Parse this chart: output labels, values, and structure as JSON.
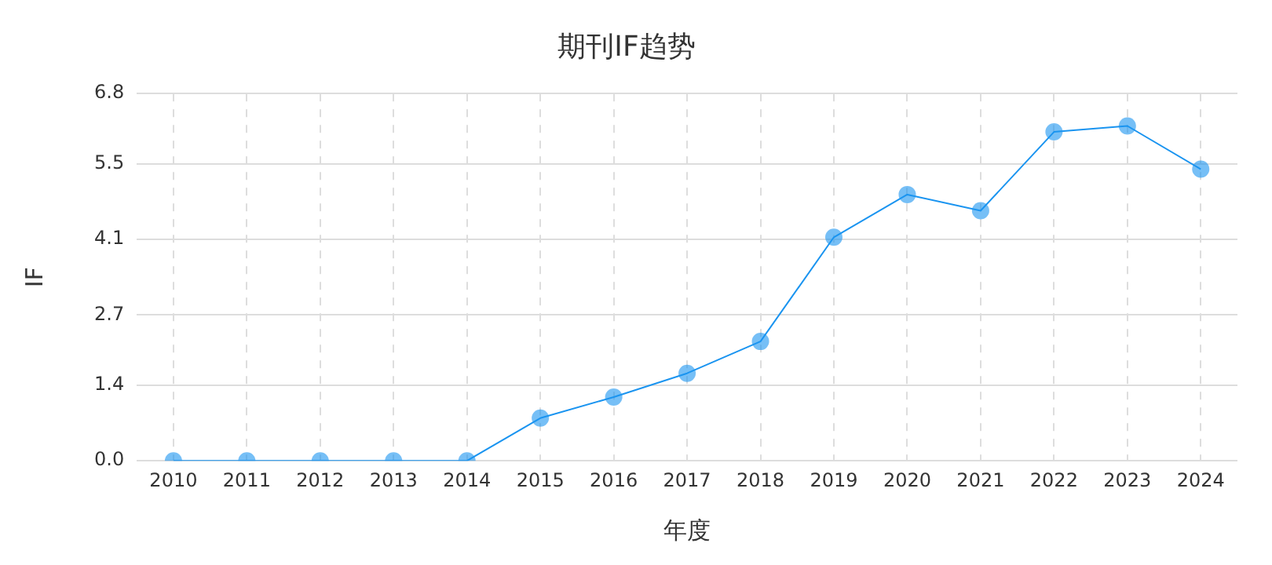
{
  "chart_data": {
    "type": "line",
    "title": "期刊IF趋势",
    "xlabel": "年度",
    "ylabel": "IF",
    "categories": [
      "2010",
      "2011",
      "2012",
      "2013",
      "2014",
      "2015",
      "2016",
      "2017",
      "2018",
      "2019",
      "2020",
      "2021",
      "2022",
      "2023",
      "2024"
    ],
    "series": [
      {
        "color": "#1a94f0",
        "values": [
          0,
          0,
          0,
          0,
          0,
          0.79,
          1.18,
          1.62,
          2.21,
          4.14,
          4.93,
          4.63,
          6.09,
          6.2,
          5.4
        ]
      }
    ],
    "ylim": [
      0,
      6.8
    ],
    "yticks": [
      {
        "value": 0,
        "label": "0.0"
      },
      1.4,
      2.7,
      4.1,
      5.5,
      6.8
    ],
    "grid": true,
    "marker": "circle",
    "line_style": "solid",
    "legend": false
  }
}
